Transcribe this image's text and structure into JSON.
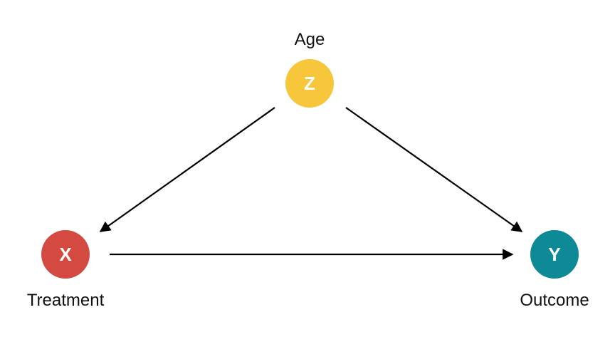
{
  "diagram": {
    "type": "causal-dag",
    "nodes": {
      "z": {
        "letter": "Z",
        "caption": "Age",
        "color": "#F8C63A"
      },
      "x": {
        "letter": "X",
        "caption": "Treatment",
        "color": "#D44A40"
      },
      "y": {
        "letter": "Y",
        "caption": "Outcome",
        "color": "#0E8A96"
      }
    },
    "edges": [
      {
        "from": "Z",
        "to": "X"
      },
      {
        "from": "Z",
        "to": "Y"
      },
      {
        "from": "X",
        "to": "Y"
      }
    ],
    "edge_color": "#000000"
  }
}
